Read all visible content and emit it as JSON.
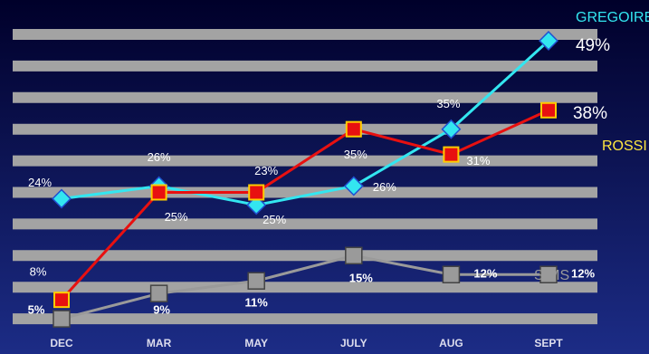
{
  "chart_data": {
    "type": "line",
    "categories": [
      "DEC",
      "MAR",
      "MAY",
      "JULY",
      "AUG",
      "SEPT"
    ],
    "series": [
      {
        "name": "GREGOIRE",
        "color": "#33e6f0",
        "values": [
          24,
          26,
          23,
          26,
          35,
          49
        ],
        "value_labels": [
          "24%",
          "26%",
          "23%",
          "26%",
          "35%",
          "49%"
        ]
      },
      {
        "name": "ROSSI",
        "color": "#e81010",
        "values": [
          8,
          25,
          25,
          35,
          31,
          38
        ],
        "value_labels": [
          "8%",
          "25%",
          "25%",
          "35%",
          "31%",
          "38%"
        ]
      },
      {
        "name": "SIMS",
        "color": "#9a9a9a",
        "values": [
          5,
          9,
          11,
          15,
          12,
          12
        ],
        "value_labels": [
          "5%",
          "9%",
          "11%",
          "15%",
          "12%",
          "12%"
        ]
      }
    ],
    "ylim": [
      0,
      50
    ],
    "yticks": [
      5,
      10,
      15,
      20,
      25,
      30,
      35,
      40,
      45,
      50
    ],
    "grid": true
  }
}
